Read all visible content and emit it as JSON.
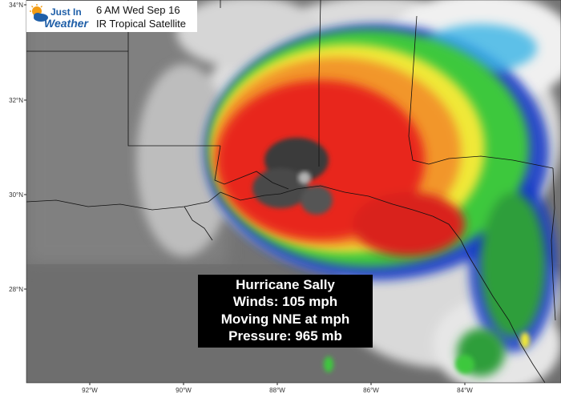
{
  "header": {
    "logo_line1": "Just In",
    "logo_line2": "Weather",
    "time_label": "6 AM Wed Sep 16",
    "product_label": "IR Tropical Satellite"
  },
  "storm_info": {
    "name": "Hurricane Sally",
    "winds": "Winds: 105 mph",
    "motion": "Moving NNE at  mph",
    "pressure": "Pressure: 965 mb"
  },
  "map": {
    "latitude_labels": [
      "34°N",
      "32°N",
      "30°N",
      "28°N"
    ],
    "longitude_labels": [
      "92°W",
      "90°W",
      "88°W",
      "86°W",
      "84°W"
    ],
    "colors": {
      "background_gray": "#6e6e6e",
      "cloud_white": "#f2f2f2",
      "cold_black": "#3a3a3a",
      "red": "#e8281e",
      "orange": "#f2962a",
      "yellow": "#f0e838",
      "green": "#3cc83c",
      "blue": "#1a3cc8",
      "cyan": "#3ab4e6",
      "info_box": "#000000",
      "logo_blue": "#1f5fa8",
      "logo_orange": "#f39c12"
    }
  }
}
